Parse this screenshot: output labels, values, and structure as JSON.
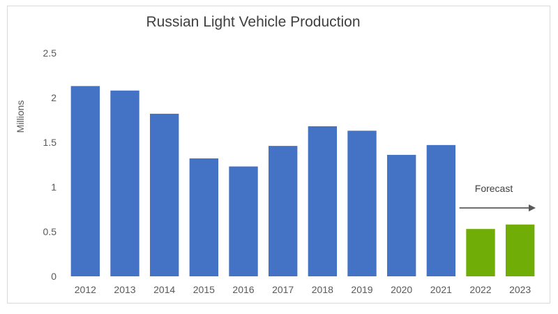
{
  "chart_data": {
    "type": "bar",
    "title": "Russian Light Vehicle Production",
    "xlabel": "",
    "ylabel": "Millions",
    "ylim": [
      0,
      2.5
    ],
    "yticks": [
      "0",
      "0.5",
      "1",
      "1.5",
      "2",
      "2.5"
    ],
    "grid": false,
    "categories": [
      "2012",
      "2013",
      "2014",
      "2015",
      "2016",
      "2017",
      "2018",
      "2019",
      "2020",
      "2021",
      "2022",
      "2023"
    ],
    "values": [
      2.13,
      2.08,
      1.82,
      1.32,
      1.23,
      1.46,
      1.68,
      1.63,
      1.36,
      1.47,
      0.53,
      0.58
    ],
    "forecast_start_index": 10,
    "colors": {
      "actual": "#4472C4",
      "forecast": "#70AD07",
      "arrow": "#595959"
    },
    "annotation": "Forecast"
  }
}
